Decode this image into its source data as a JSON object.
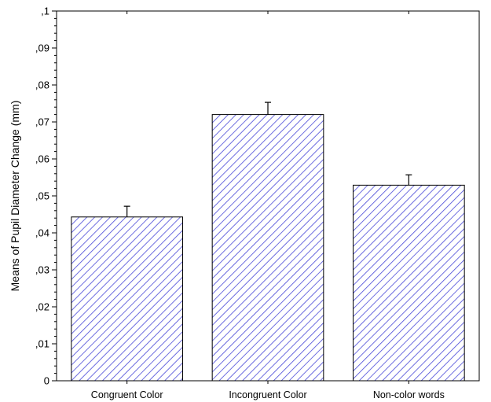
{
  "chart_data": {
    "type": "bar",
    "title": "",
    "xlabel": "",
    "ylabel": "Means of Pupil Diameter Change (mm)",
    "categories": [
      "Congruent Color",
      "Incongruent Color",
      "Non-color words"
    ],
    "values": [
      0.0443,
      0.072,
      0.0529
    ],
    "error_upper": [
      0.0472,
      0.0753,
      0.0557
    ],
    "ylim": [
      0,
      0.1
    ],
    "yticks": [
      0,
      0.01,
      0.02,
      0.03,
      0.04,
      0.05,
      0.06,
      0.07,
      0.08,
      0.09,
      0.1
    ],
    "ytick_labels": [
      "0",
      ",01",
      ",02",
      ",03",
      ",04",
      ",05",
      ",06",
      ",07",
      ",08",
      ",09",
      ",1"
    ],
    "grid": false,
    "legend": "none",
    "bar_fill": "hatched",
    "hatch_color": "#3f3fd0",
    "bar_edge_color": "#000000"
  }
}
